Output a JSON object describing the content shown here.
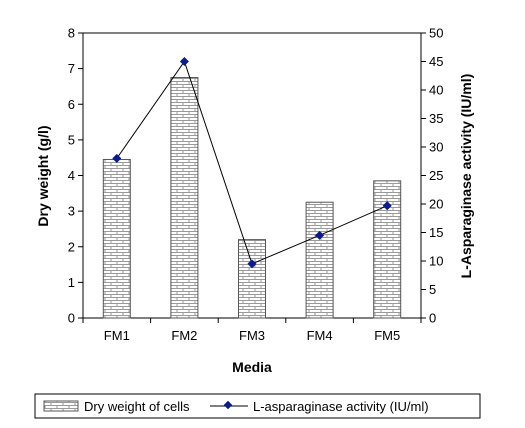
{
  "chart_data": {
    "type": "bar+line",
    "categories": [
      "FM1",
      "FM2",
      "FM3",
      "FM4",
      "FM5"
    ],
    "xlabel": "Media",
    "ylabel_left": "Dry weight (g/l)",
    "ylabel_right": "L-Asparaginase activity (IU/ml)",
    "ylim_left": [
      0,
      8
    ],
    "ylim_right": [
      0,
      50
    ],
    "yticks_left": [
      "0",
      "1",
      "2",
      "3",
      "4",
      "5",
      "6",
      "7",
      "8"
    ],
    "yticks_right": [
      "0",
      "5",
      "10",
      "15",
      "20",
      "25",
      "30",
      "35",
      "40",
      "45",
      "50"
    ],
    "grid": false,
    "legend_position": "bottom",
    "series": [
      {
        "name": "Dry weight of cells",
        "type": "bar",
        "axis": "left",
        "values": [
          4.45,
          6.75,
          2.2,
          3.25,
          3.85
        ]
      },
      {
        "name": "L-asparaginase activity (IU/ml)",
        "type": "line",
        "axis": "right",
        "values": [
          28,
          45,
          9.5,
          14.5,
          19.7
        ],
        "color": "#0b1a8c"
      }
    ]
  }
}
